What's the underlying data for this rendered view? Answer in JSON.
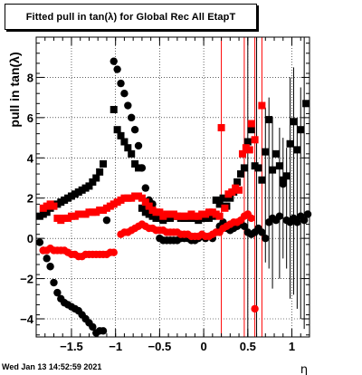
{
  "chart_data": {
    "type": "scatter",
    "title": "Fitted pull in tan(λ) for Global Rec All EtapT",
    "ylabel": "pull in tan(λ)",
    "xlabel": "η",
    "xlim": [
      -1.9,
      1.2
    ],
    "ylim": [
      -4.9,
      10.0
    ],
    "x_ticks": [
      -1.5,
      -1,
      -0.5,
      0,
      0.5,
      1
    ],
    "x_tick_labels": [
      "−1.5",
      "−1",
      "−0.5",
      "0",
      "0.5",
      "1"
    ],
    "y_ticks": [
      -4,
      -2,
      0,
      2,
      4,
      6,
      8
    ],
    "y_tick_labels": [
      "−4",
      "−2",
      "0",
      "2",
      "4",
      "6",
      "8"
    ],
    "grid": true,
    "colors": {
      "black": "#000000",
      "red": "#ff0000"
    },
    "series": [
      {
        "marker": "square",
        "color": "#000000",
        "points": [
          [
            -1.86,
            1.1
          ],
          [
            -1.82,
            1.2
          ],
          [
            -1.78,
            1.3
          ],
          [
            -1.74,
            1.5
          ],
          [
            -1.7,
            1.6
          ],
          [
            -1.66,
            1.7
          ],
          [
            -1.62,
            1.8
          ],
          [
            -1.58,
            1.9
          ],
          [
            -1.54,
            2.0
          ],
          [
            -1.5,
            2.1
          ],
          [
            -1.46,
            2.2
          ],
          [
            -1.42,
            2.3
          ],
          [
            -1.38,
            2.4
          ],
          [
            -1.34,
            2.5
          ],
          [
            -1.3,
            2.6
          ],
          [
            -1.26,
            2.8
          ],
          [
            -1.22,
            3.0
          ],
          [
            -1.18,
            3.3
          ],
          [
            -1.14,
            3.7
          ],
          [
            -1.02,
            6.4
          ],
          [
            -0.98,
            5.4
          ],
          [
            -0.94,
            5.1
          ],
          [
            -0.9,
            4.8
          ],
          [
            -0.86,
            4.5
          ],
          [
            -0.82,
            4.2
          ],
          [
            -0.78,
            3.7
          ],
          [
            -0.74,
            3.5
          ],
          [
            -0.7,
            1.5
          ],
          [
            -0.66,
            1.3
          ],
          [
            -0.62,
            1.2
          ],
          [
            -0.58,
            1.1
          ],
          [
            -0.54,
            1.0
          ],
          [
            -0.5,
            1.0
          ],
          [
            -0.46,
            0.9
          ],
          [
            -0.42,
            1.0
          ],
          [
            -0.38,
            1.0
          ],
          [
            -0.34,
            1.1
          ],
          [
            -0.3,
            1.1
          ],
          [
            -0.26,
            1.0
          ],
          [
            -0.22,
            1.0
          ],
          [
            -0.18,
            1.0
          ],
          [
            -0.14,
            1.0
          ],
          [
            -0.1,
            1.0
          ],
          [
            -0.06,
            0.9
          ],
          [
            -0.02,
            1.0
          ],
          [
            0.02,
            1.0
          ],
          [
            0.06,
            1.0
          ],
          [
            0.1,
            1.1
          ],
          [
            0.14,
            1.9
          ],
          [
            0.18,
            1.7
          ],
          [
            0.22,
            2.0
          ],
          [
            0.26,
            1.6
          ],
          [
            0.3,
            2.0
          ],
          [
            0.34,
            2.3
          ],
          [
            0.38,
            2.8
          ],
          [
            0.42,
            3.2
          ],
          [
            0.46,
            3.5
          ],
          [
            0.5,
            4.8
          ],
          [
            0.54,
            5.4
          ],
          [
            0.58,
            3.6
          ],
          [
            0.62,
            3.5
          ],
          [
            0.66,
            2.9
          ],
          [
            0.7,
            4.3
          ],
          [
            0.74,
            5.9
          ],
          [
            0.78,
            3.4
          ],
          [
            0.82,
            4.2
          ],
          [
            0.86,
            3.6
          ],
          [
            0.9,
            2.9
          ],
          [
            0.94,
            3.1
          ],
          [
            0.98,
            4.7
          ],
          [
            1.02,
            5.8
          ],
          [
            1.06,
            4.4
          ],
          [
            1.1,
            5.4
          ],
          [
            1.16,
            6.7
          ]
        ]
      },
      {
        "marker": "circle",
        "color": "#000000",
        "points": [
          [
            -1.86,
            -0.2
          ],
          [
            -1.82,
            -0.6
          ],
          [
            -1.78,
            -1.0
          ],
          [
            -1.74,
            -1.4
          ],
          [
            -1.7,
            -2.2
          ],
          [
            -1.66,
            -2.7
          ],
          [
            -1.62,
            -3.0
          ],
          [
            -1.58,
            -3.2
          ],
          [
            -1.54,
            -3.3
          ],
          [
            -1.5,
            -3.4
          ],
          [
            -1.46,
            -3.5
          ],
          [
            -1.42,
            -3.6
          ],
          [
            -1.38,
            -3.8
          ],
          [
            -1.34,
            -4.0
          ],
          [
            -1.3,
            -4.2
          ],
          [
            -1.26,
            -4.4
          ],
          [
            -1.22,
            -4.7
          ],
          [
            -1.18,
            -4.6
          ],
          [
            -1.14,
            -4.6
          ],
          [
            -1.1,
            0.9
          ],
          [
            -1.02,
            8.8
          ],
          [
            -0.98,
            8.4
          ],
          [
            -0.94,
            7.7
          ],
          [
            -0.9,
            7.2
          ],
          [
            -0.86,
            6.6
          ],
          [
            -0.82,
            6.0
          ],
          [
            -0.78,
            5.4
          ],
          [
            -0.74,
            4.6
          ],
          [
            -0.7,
            3.5
          ],
          [
            -0.66,
            2.5
          ],
          [
            -0.62,
            1.9
          ],
          [
            -0.58,
            1.7
          ],
          [
            -0.54,
            1.3
          ],
          [
            -0.5,
            0.0
          ],
          [
            -0.46,
            -0.1
          ],
          [
            -0.42,
            -0.1
          ],
          [
            -0.38,
            -0.1
          ],
          [
            -0.34,
            -0.1
          ],
          [
            -0.3,
            -0.1
          ],
          [
            -0.26,
            0.0
          ],
          [
            -0.22,
            0.0
          ],
          [
            -0.18,
            0.0
          ],
          [
            -0.14,
            -0.1
          ],
          [
            -0.1,
            -0.1
          ],
          [
            -0.06,
            0.0
          ],
          [
            -0.02,
            0.1
          ],
          [
            0.02,
            0.0
          ],
          [
            0.06,
            0.1
          ],
          [
            0.1,
            0.0
          ],
          [
            0.14,
            0.3
          ],
          [
            0.18,
            0.6
          ],
          [
            0.22,
            0.8
          ],
          [
            0.26,
            0.5
          ],
          [
            0.3,
            0.4
          ],
          [
            0.34,
            0.5
          ],
          [
            0.38,
            0.6
          ],
          [
            0.42,
            0.8
          ],
          [
            0.46,
            0.6
          ],
          [
            0.5,
            0.3
          ],
          [
            0.54,
            0.2
          ],
          [
            0.58,
            0.3
          ],
          [
            0.62,
            0.5
          ],
          [
            0.66,
            0.3
          ],
          [
            0.7,
            0.0
          ],
          [
            0.74,
            0.8
          ],
          [
            0.78,
            1.0
          ],
          [
            0.82,
            0.9
          ],
          [
            0.86,
            1.1
          ],
          [
            0.9,
            2.7
          ],
          [
            0.94,
            0.9
          ],
          [
            0.98,
            0.8
          ],
          [
            1.02,
            1.0
          ],
          [
            1.06,
            0.8
          ],
          [
            1.1,
            1.1
          ],
          [
            1.14,
            0.9
          ],
          [
            1.18,
            1.2
          ]
        ]
      },
      {
        "marker": "square",
        "color": "#ff0000",
        "points": [
          [
            -1.82,
            1.5
          ],
          [
            -1.78,
            1.6
          ],
          [
            -1.74,
            1.7
          ],
          [
            -1.7,
            1.6
          ],
          [
            -1.66,
            1.0
          ],
          [
            -1.62,
            0.9
          ],
          [
            -1.58,
            1.0
          ],
          [
            -1.54,
            1.0
          ],
          [
            -1.5,
            1.1
          ],
          [
            -1.46,
            1.1
          ],
          [
            -1.42,
            1.2
          ],
          [
            -1.38,
            1.2
          ],
          [
            -1.34,
            1.2
          ],
          [
            -1.3,
            1.3
          ],
          [
            -1.26,
            1.3
          ],
          [
            -1.22,
            1.3
          ],
          [
            -1.18,
            1.4
          ],
          [
            -1.14,
            1.4
          ],
          [
            -1.1,
            1.5
          ],
          [
            -1.06,
            1.6
          ],
          [
            -1.02,
            1.7
          ],
          [
            -0.98,
            1.8
          ],
          [
            -0.94,
            1.9
          ],
          [
            -0.9,
            2.0
          ],
          [
            -0.86,
            2.0
          ],
          [
            -0.82,
            2.0
          ],
          [
            -0.78,
            2.1
          ],
          [
            -0.74,
            2.1
          ],
          [
            -0.7,
            2.0
          ],
          [
            -0.66,
            1.8
          ],
          [
            -0.62,
            1.6
          ],
          [
            -0.58,
            1.4
          ],
          [
            -0.54,
            1.3
          ],
          [
            -0.5,
            1.3
          ],
          [
            -0.46,
            1.1
          ],
          [
            -0.42,
            1.2
          ],
          [
            -0.38,
            1.2
          ],
          [
            -0.34,
            1.2
          ],
          [
            -0.3,
            1.1
          ],
          [
            -0.26,
            1.1
          ],
          [
            -0.22,
            1.1
          ],
          [
            -0.18,
            1.1
          ],
          [
            -0.14,
            1.2
          ],
          [
            -0.1,
            1.1
          ],
          [
            -0.06,
            1.1
          ],
          [
            -0.02,
            1.2
          ],
          [
            0.02,
            1.2
          ],
          [
            0.06,
            1.3
          ],
          [
            0.1,
            1.3
          ],
          [
            0.14,
            1.2
          ],
          [
            0.18,
            1.1
          ],
          [
            0.2,
            5.5
          ],
          [
            0.24,
            1.5
          ],
          [
            0.28,
            2.2
          ],
          [
            0.32,
            2.3
          ],
          [
            0.36,
            2.5
          ],
          [
            0.4,
            2.4
          ],
          [
            0.44,
            4.2
          ],
          [
            0.48,
            4.5
          ],
          [
            0.52,
            4.4
          ],
          [
            0.54,
            5.7
          ],
          [
            0.58,
            4.9
          ],
          [
            0.66,
            6.6
          ]
        ]
      },
      {
        "marker": "circle",
        "color": "#ff0000",
        "points": [
          [
            -1.82,
            -0.6
          ],
          [
            -1.78,
            -0.6
          ],
          [
            -1.74,
            -0.5
          ],
          [
            -1.7,
            -0.6
          ],
          [
            -1.66,
            -0.6
          ],
          [
            -1.62,
            -0.6
          ],
          [
            -1.58,
            -0.6
          ],
          [
            -1.54,
            -0.7
          ],
          [
            -1.5,
            -0.8
          ],
          [
            -1.46,
            -0.8
          ],
          [
            -1.42,
            -0.9
          ],
          [
            -1.38,
            -0.9
          ],
          [
            -1.34,
            -0.8
          ],
          [
            -1.3,
            -0.8
          ],
          [
            -1.26,
            -0.8
          ],
          [
            -1.22,
            -0.8
          ],
          [
            -1.18,
            -0.8
          ],
          [
            -1.14,
            -0.8
          ],
          [
            -1.1,
            -0.8
          ],
          [
            -1.06,
            -0.7
          ],
          [
            -1.02,
            -0.7
          ],
          [
            -0.94,
            0.2
          ],
          [
            -0.9,
            0.3
          ],
          [
            -0.86,
            0.3
          ],
          [
            -0.82,
            0.4
          ],
          [
            -0.78,
            0.5
          ],
          [
            -0.74,
            0.6
          ],
          [
            -0.7,
            0.7
          ],
          [
            -0.66,
            0.6
          ],
          [
            -0.62,
            0.5
          ],
          [
            -0.58,
            0.5
          ],
          [
            -0.54,
            0.4
          ],
          [
            -0.5,
            0.4
          ],
          [
            -0.46,
            0.4
          ],
          [
            -0.42,
            0.3
          ],
          [
            -0.38,
            0.3
          ],
          [
            -0.34,
            0.3
          ],
          [
            -0.3,
            0.3
          ],
          [
            -0.26,
            0.2
          ],
          [
            -0.22,
            0.2
          ],
          [
            -0.18,
            0.2
          ],
          [
            -0.14,
            0.1
          ],
          [
            -0.1,
            0.1
          ],
          [
            -0.06,
            0.1
          ],
          [
            -0.02,
            0.2
          ],
          [
            0.02,
            0.1
          ],
          [
            0.06,
            0.1
          ],
          [
            0.1,
            0.2
          ],
          [
            0.14,
            0.3
          ],
          [
            0.18,
            0.3
          ],
          [
            0.22,
            0.5
          ],
          [
            0.26,
            0.6
          ],
          [
            0.3,
            0.7
          ],
          [
            0.34,
            0.8
          ],
          [
            0.38,
            0.8
          ],
          [
            0.42,
            0.9
          ],
          [
            0.46,
            1.1
          ],
          [
            0.5,
            1.2
          ],
          [
            0.54,
            1.0
          ],
          [
            0.58,
            -3.5
          ]
        ]
      }
    ],
    "error_bars": [
      {
        "x": 0.2,
        "low": -4.9,
        "high": 10.0,
        "color": "#ff0000"
      },
      {
        "x": 0.46,
        "low": -4.9,
        "high": 10.0,
        "color": "#ff0000"
      },
      {
        "x": 0.58,
        "low": -4.9,
        "high": 10.0,
        "color": "#ff0000"
      },
      {
        "x": 0.66,
        "low": -4.9,
        "high": 10.0,
        "color": "#ff0000"
      },
      {
        "x": 0.5,
        "low": -4.9,
        "high": 10.0,
        "color": "#000000"
      },
      {
        "x": 0.6,
        "low": -4.9,
        "high": 10.0,
        "color": "#000000"
      },
      {
        "x": 0.7,
        "low": -1.2,
        "high": 6.5,
        "color": "#000000"
      },
      {
        "x": 0.74,
        "low": -1.5,
        "high": 7.0,
        "color": "#000000"
      },
      {
        "x": 0.78,
        "low": -2.5,
        "high": 6.0,
        "color": "#000000"
      },
      {
        "x": 0.86,
        "low": -2.0,
        "high": 5.5,
        "color": "#000000"
      },
      {
        "x": 0.9,
        "low": -1.0,
        "high": 5.0,
        "color": "#000000"
      },
      {
        "x": 0.94,
        "low": -1.5,
        "high": 4.5,
        "color": "#000000"
      },
      {
        "x": 0.98,
        "low": -3.0,
        "high": 8.0,
        "color": "#000000"
      },
      {
        "x": 1.02,
        "low": -2.8,
        "high": 8.5,
        "color": "#000000"
      },
      {
        "x": 1.06,
        "low": -3.5,
        "high": 6.0,
        "color": "#000000"
      },
      {
        "x": 1.1,
        "low": -4.0,
        "high": 7.5,
        "color": "#000000"
      },
      {
        "x": 1.14,
        "low": -4.5,
        "high": 10.0,
        "color": "#000000"
      }
    ]
  },
  "footer": {
    "timestamp": "Wed Jan 13 14:52:59 2021"
  }
}
